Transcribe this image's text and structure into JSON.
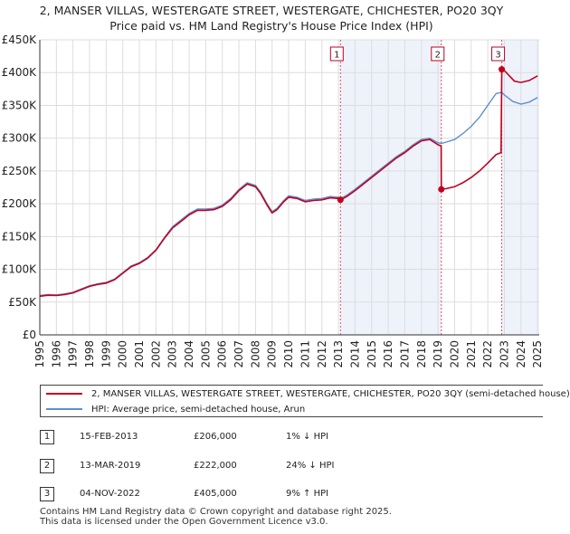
{
  "title_line1": "2, MANSER VILLAS, WESTERGATE STREET, WESTERGATE, CHICHESTER, PO20 3QY",
  "title_line2": "Price paid vs. HM Land Registry's House Price Index (HPI)",
  "chart_data": {
    "type": "line",
    "title": "2, MANSER VILLAS, WESTERGATE STREET, WESTERGATE, CHICHESTER, PO20 3QY — Price paid vs. HM Land Registry's House Price Index (HPI)",
    "xlim": [
      1995,
      2025.1
    ],
    "ylim": [
      0,
      450000
    ],
    "grid": true,
    "y_ticks": [
      0,
      50000,
      100000,
      150000,
      200000,
      250000,
      300000,
      350000,
      400000,
      450000
    ],
    "y_tick_labels": [
      "£0",
      "£50K",
      "£100K",
      "£150K",
      "£200K",
      "£250K",
      "£300K",
      "£350K",
      "£400K",
      "£450K"
    ],
    "x_ticks": [
      1995,
      1996,
      1997,
      1998,
      1999,
      2000,
      2001,
      2002,
      2003,
      2004,
      2005,
      2006,
      2007,
      2008,
      2009,
      2010,
      2011,
      2012,
      2013,
      2014,
      2015,
      2016,
      2017,
      2018,
      2019,
      2020,
      2021,
      2022,
      2023,
      2024,
      2025
    ],
    "series": [
      {
        "name": "HPI: Average price, semi-detached house, Arun",
        "color": "#5b8fd0",
        "points": [
          [
            1995.0,
            60000
          ],
          [
            1995.5,
            61500
          ],
          [
            1996.0,
            61000
          ],
          [
            1996.5,
            62500
          ],
          [
            1997.0,
            65000
          ],
          [
            1997.5,
            70000
          ],
          [
            1998.0,
            75000
          ],
          [
            1998.5,
            78000
          ],
          [
            1999.0,
            80000
          ],
          [
            1999.5,
            85000
          ],
          [
            2000.0,
            95000
          ],
          [
            2000.5,
            105000
          ],
          [
            2001.0,
            110000
          ],
          [
            2001.5,
            118000
          ],
          [
            2002.0,
            130000
          ],
          [
            2002.5,
            148000
          ],
          [
            2003.0,
            165000
          ],
          [
            2003.5,
            175000
          ],
          [
            2004.0,
            185000
          ],
          [
            2004.5,
            192000
          ],
          [
            2005.0,
            192000
          ],
          [
            2005.5,
            193000
          ],
          [
            2006.0,
            198000
          ],
          [
            2006.5,
            208000
          ],
          [
            2007.0,
            222000
          ],
          [
            2007.5,
            232000
          ],
          [
            2008.0,
            228000
          ],
          [
            2008.3,
            218000
          ],
          [
            2008.7,
            200000
          ],
          [
            2009.0,
            188000
          ],
          [
            2009.3,
            193000
          ],
          [
            2009.7,
            205000
          ],
          [
            2010.0,
            212000
          ],
          [
            2010.5,
            210000
          ],
          [
            2011.0,
            205000
          ],
          [
            2011.5,
            207000
          ],
          [
            2012.0,
            208000
          ],
          [
            2012.5,
            211000
          ],
          [
            2013.0,
            210000
          ],
          [
            2013.12,
            208000
          ],
          [
            2013.5,
            213000
          ],
          [
            2014.0,
            222000
          ],
          [
            2014.5,
            232000
          ],
          [
            2015.0,
            242000
          ],
          [
            2015.5,
            252000
          ],
          [
            2016.0,
            262000
          ],
          [
            2016.5,
            272000
          ],
          [
            2017.0,
            280000
          ],
          [
            2017.5,
            290000
          ],
          [
            2018.0,
            298000
          ],
          [
            2018.5,
            300000
          ],
          [
            2019.0,
            293000
          ],
          [
            2019.2,
            292000
          ],
          [
            2019.5,
            294000
          ],
          [
            2020.0,
            298000
          ],
          [
            2020.5,
            307000
          ],
          [
            2021.0,
            318000
          ],
          [
            2021.5,
            332000
          ],
          [
            2022.0,
            350000
          ],
          [
            2022.5,
            368000
          ],
          [
            2022.84,
            370000
          ],
          [
            2023.0,
            366000
          ],
          [
            2023.5,
            356000
          ],
          [
            2024.0,
            352000
          ],
          [
            2024.5,
            355000
          ],
          [
            2025.0,
            362000
          ]
        ]
      },
      {
        "name": "2, MANSER VILLAS, WESTERGATE STREET, WESTERGATE, CHICHESTER, PO20 3QY (semi-detached house)",
        "color": "#c0001f",
        "points": [
          [
            1995.0,
            59000
          ],
          [
            1995.5,
            60500
          ],
          [
            1996.0,
            60000
          ],
          [
            1996.5,
            61500
          ],
          [
            1997.0,
            64000
          ],
          [
            1997.5,
            69000
          ],
          [
            1998.0,
            74000
          ],
          [
            1998.5,
            77000
          ],
          [
            1999.0,
            79000
          ],
          [
            1999.5,
            84000
          ],
          [
            2000.0,
            94000
          ],
          [
            2000.5,
            104000
          ],
          [
            2001.0,
            109000
          ],
          [
            2001.5,
            117000
          ],
          [
            2002.0,
            129000
          ],
          [
            2002.5,
            147000
          ],
          [
            2003.0,
            163000
          ],
          [
            2003.5,
            173000
          ],
          [
            2004.0,
            183000
          ],
          [
            2004.5,
            190000
          ],
          [
            2005.0,
            190000
          ],
          [
            2005.5,
            191000
          ],
          [
            2006.0,
            196000
          ],
          [
            2006.5,
            206000
          ],
          [
            2007.0,
            220000
          ],
          [
            2007.5,
            230000
          ],
          [
            2008.0,
            226000
          ],
          [
            2008.3,
            216000
          ],
          [
            2008.7,
            198000
          ],
          [
            2009.0,
            186000
          ],
          [
            2009.3,
            191000
          ],
          [
            2009.7,
            203000
          ],
          [
            2010.0,
            210000
          ],
          [
            2010.5,
            208000
          ],
          [
            2011.0,
            203000
          ],
          [
            2011.5,
            205000
          ],
          [
            2012.0,
            206000
          ],
          [
            2012.5,
            209000
          ],
          [
            2013.0,
            208000
          ],
          [
            2013.12,
            206000
          ],
          [
            2013.5,
            211000
          ],
          [
            2014.0,
            220000
          ],
          [
            2014.5,
            230000
          ],
          [
            2015.0,
            240000
          ],
          [
            2015.5,
            250000
          ],
          [
            2016.0,
            260000
          ],
          [
            2016.5,
            270000
          ],
          [
            2017.0,
            278000
          ],
          [
            2017.5,
            288000
          ],
          [
            2018.0,
            296000
          ],
          [
            2018.5,
            298000
          ],
          [
            2019.0,
            290000
          ],
          [
            2019.19,
            288000
          ],
          [
            2019.2,
            222000
          ],
          [
            2019.5,
            223000
          ],
          [
            2020.0,
            226000
          ],
          [
            2020.5,
            232000
          ],
          [
            2021.0,
            240000
          ],
          [
            2021.5,
            250000
          ],
          [
            2022.0,
            262000
          ],
          [
            2022.5,
            275000
          ],
          [
            2022.8,
            278000
          ],
          [
            2022.84,
            405000
          ],
          [
            2023.0,
            403000
          ],
          [
            2023.3,
            395000
          ],
          [
            2023.6,
            387000
          ],
          [
            2024.0,
            385000
          ],
          [
            2024.5,
            388000
          ],
          [
            2025.0,
            395000
          ]
        ]
      }
    ],
    "sales": [
      {
        "label": "1",
        "x": 2013.12,
        "price": 206000
      },
      {
        "label": "2",
        "x": 2019.2,
        "price": 222000
      },
      {
        "label": "3",
        "x": 2022.84,
        "price": 405000
      }
    ]
  },
  "legend": {
    "property_label": "2, MANSER VILLAS, WESTERGATE STREET, WESTERGATE, CHICHESTER, PO20 3QY (semi-detached house)",
    "hpi_label": "HPI: Average price, semi-detached house, Arun",
    "property_color": "#c0001f",
    "hpi_color": "#5b8fd0"
  },
  "transactions": [
    {
      "num": "1",
      "date": "15-FEB-2013",
      "price": "£206,000",
      "hpi": "1% ↓ HPI"
    },
    {
      "num": "2",
      "date": "13-MAR-2019",
      "price": "£222,000",
      "hpi": "24% ↓ HPI"
    },
    {
      "num": "3",
      "date": "04-NOV-2022",
      "price": "£405,000",
      "hpi": "9% ↑ HPI"
    }
  ],
  "footer_line1": "Contains HM Land Registry data © Crown copyright and database right 2025.",
  "footer_line2": "This data is licensed under the Open Government Licence v3.0."
}
